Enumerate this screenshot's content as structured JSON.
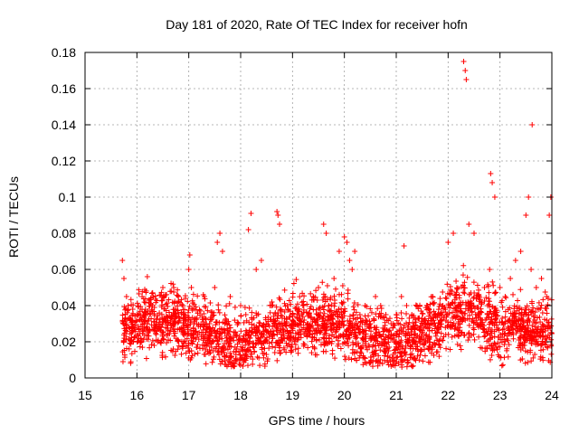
{
  "chart_data": {
    "type": "scatter",
    "title": "Day 181 of 2020, Rate Of TEC Index for receiver hofn",
    "xlabel": "GPS time / hours",
    "ylabel": "ROTI / TECUs",
    "xlim": [
      15,
      24
    ],
    "ylim": [
      0,
      0.18
    ],
    "x_ticks": [
      15,
      16,
      17,
      18,
      19,
      20,
      21,
      22,
      23,
      24
    ],
    "x_tick_labels": [
      "15",
      "16",
      "17",
      "18",
      "19",
      "20",
      "21",
      "22",
      "23",
      "24"
    ],
    "y_ticks": [
      0,
      0.02,
      0.04,
      0.06,
      0.08,
      0.1,
      0.12,
      0.14,
      0.16,
      0.18
    ],
    "y_tick_labels": [
      "0",
      "0.02",
      "0.04",
      "0.06",
      "0.08",
      "0.1",
      "0.12",
      "0.14",
      "0.16",
      "0.18"
    ],
    "grid": true,
    "marker": "+",
    "marker_color": "#ff0000",
    "series": [
      {
        "name": "ROTI",
        "x": [
          15.72,
          15.75,
          15.78,
          15.8,
          15.83,
          15.9,
          16.0,
          16.1,
          16.2,
          16.3,
          16.4,
          16.5,
          16.6,
          16.7,
          16.8,
          16.9,
          17.0,
          17.02,
          17.05,
          17.1,
          17.2,
          17.3,
          17.4,
          17.5,
          17.55,
          17.6,
          17.65,
          17.7,
          17.8,
          17.9,
          18.0,
          18.1,
          18.15,
          18.2,
          18.3,
          18.4,
          18.5,
          18.6,
          18.7,
          18.72,
          18.75,
          18.8,
          18.9,
          19.0,
          19.1,
          19.2,
          19.3,
          19.4,
          19.5,
          19.6,
          19.65,
          19.7,
          19.8,
          19.9,
          20.0,
          20.05,
          20.1,
          20.15,
          20.2,
          20.3,
          20.4,
          20.5,
          20.6,
          20.7,
          20.8,
          20.9,
          21.0,
          21.1,
          21.15,
          21.2,
          21.3,
          21.4,
          21.5,
          21.6,
          21.7,
          21.8,
          21.9,
          22.0,
          22.1,
          22.2,
          22.3,
          22.33,
          22.35,
          22.4,
          22.5,
          22.6,
          22.7,
          22.8,
          22.82,
          22.85,
          22.9,
          23.0,
          23.1,
          23.2,
          23.3,
          23.4,
          23.5,
          23.55,
          23.6,
          23.62,
          23.7,
          23.8,
          23.9,
          23.95,
          23.98
        ],
        "y": [
          0.065,
          0.055,
          0.03,
          0.045,
          0.04,
          0.025,
          0.035,
          0.045,
          0.03,
          0.04,
          0.02,
          0.05,
          0.03,
          0.035,
          0.045,
          0.02,
          0.06,
          0.068,
          0.05,
          0.03,
          0.025,
          0.045,
          0.03,
          0.05,
          0.075,
          0.08,
          0.07,
          0.03,
          0.045,
          0.025,
          0.04,
          0.035,
          0.082,
          0.091,
          0.06,
          0.065,
          0.03,
          0.04,
          0.092,
          0.09,
          0.085,
          0.03,
          0.04,
          0.035,
          0.025,
          0.04,
          0.03,
          0.045,
          0.05,
          0.085,
          0.08,
          0.04,
          0.055,
          0.07,
          0.078,
          0.075,
          0.065,
          0.06,
          0.07,
          0.035,
          0.04,
          0.03,
          0.045,
          0.04,
          0.035,
          0.03,
          0.035,
          0.045,
          0.073,
          0.04,
          0.035,
          0.04,
          0.03,
          0.04,
          0.045,
          0.035,
          0.04,
          0.075,
          0.08,
          0.03,
          0.175,
          0.17,
          0.165,
          0.085,
          0.08,
          0.035,
          0.05,
          0.06,
          0.113,
          0.108,
          0.1,
          0.05,
          0.045,
          0.055,
          0.065,
          0.07,
          0.09,
          0.1,
          0.06,
          0.14,
          0.05,
          0.055,
          0.045,
          0.09,
          0.1
        ]
      }
    ]
  }
}
